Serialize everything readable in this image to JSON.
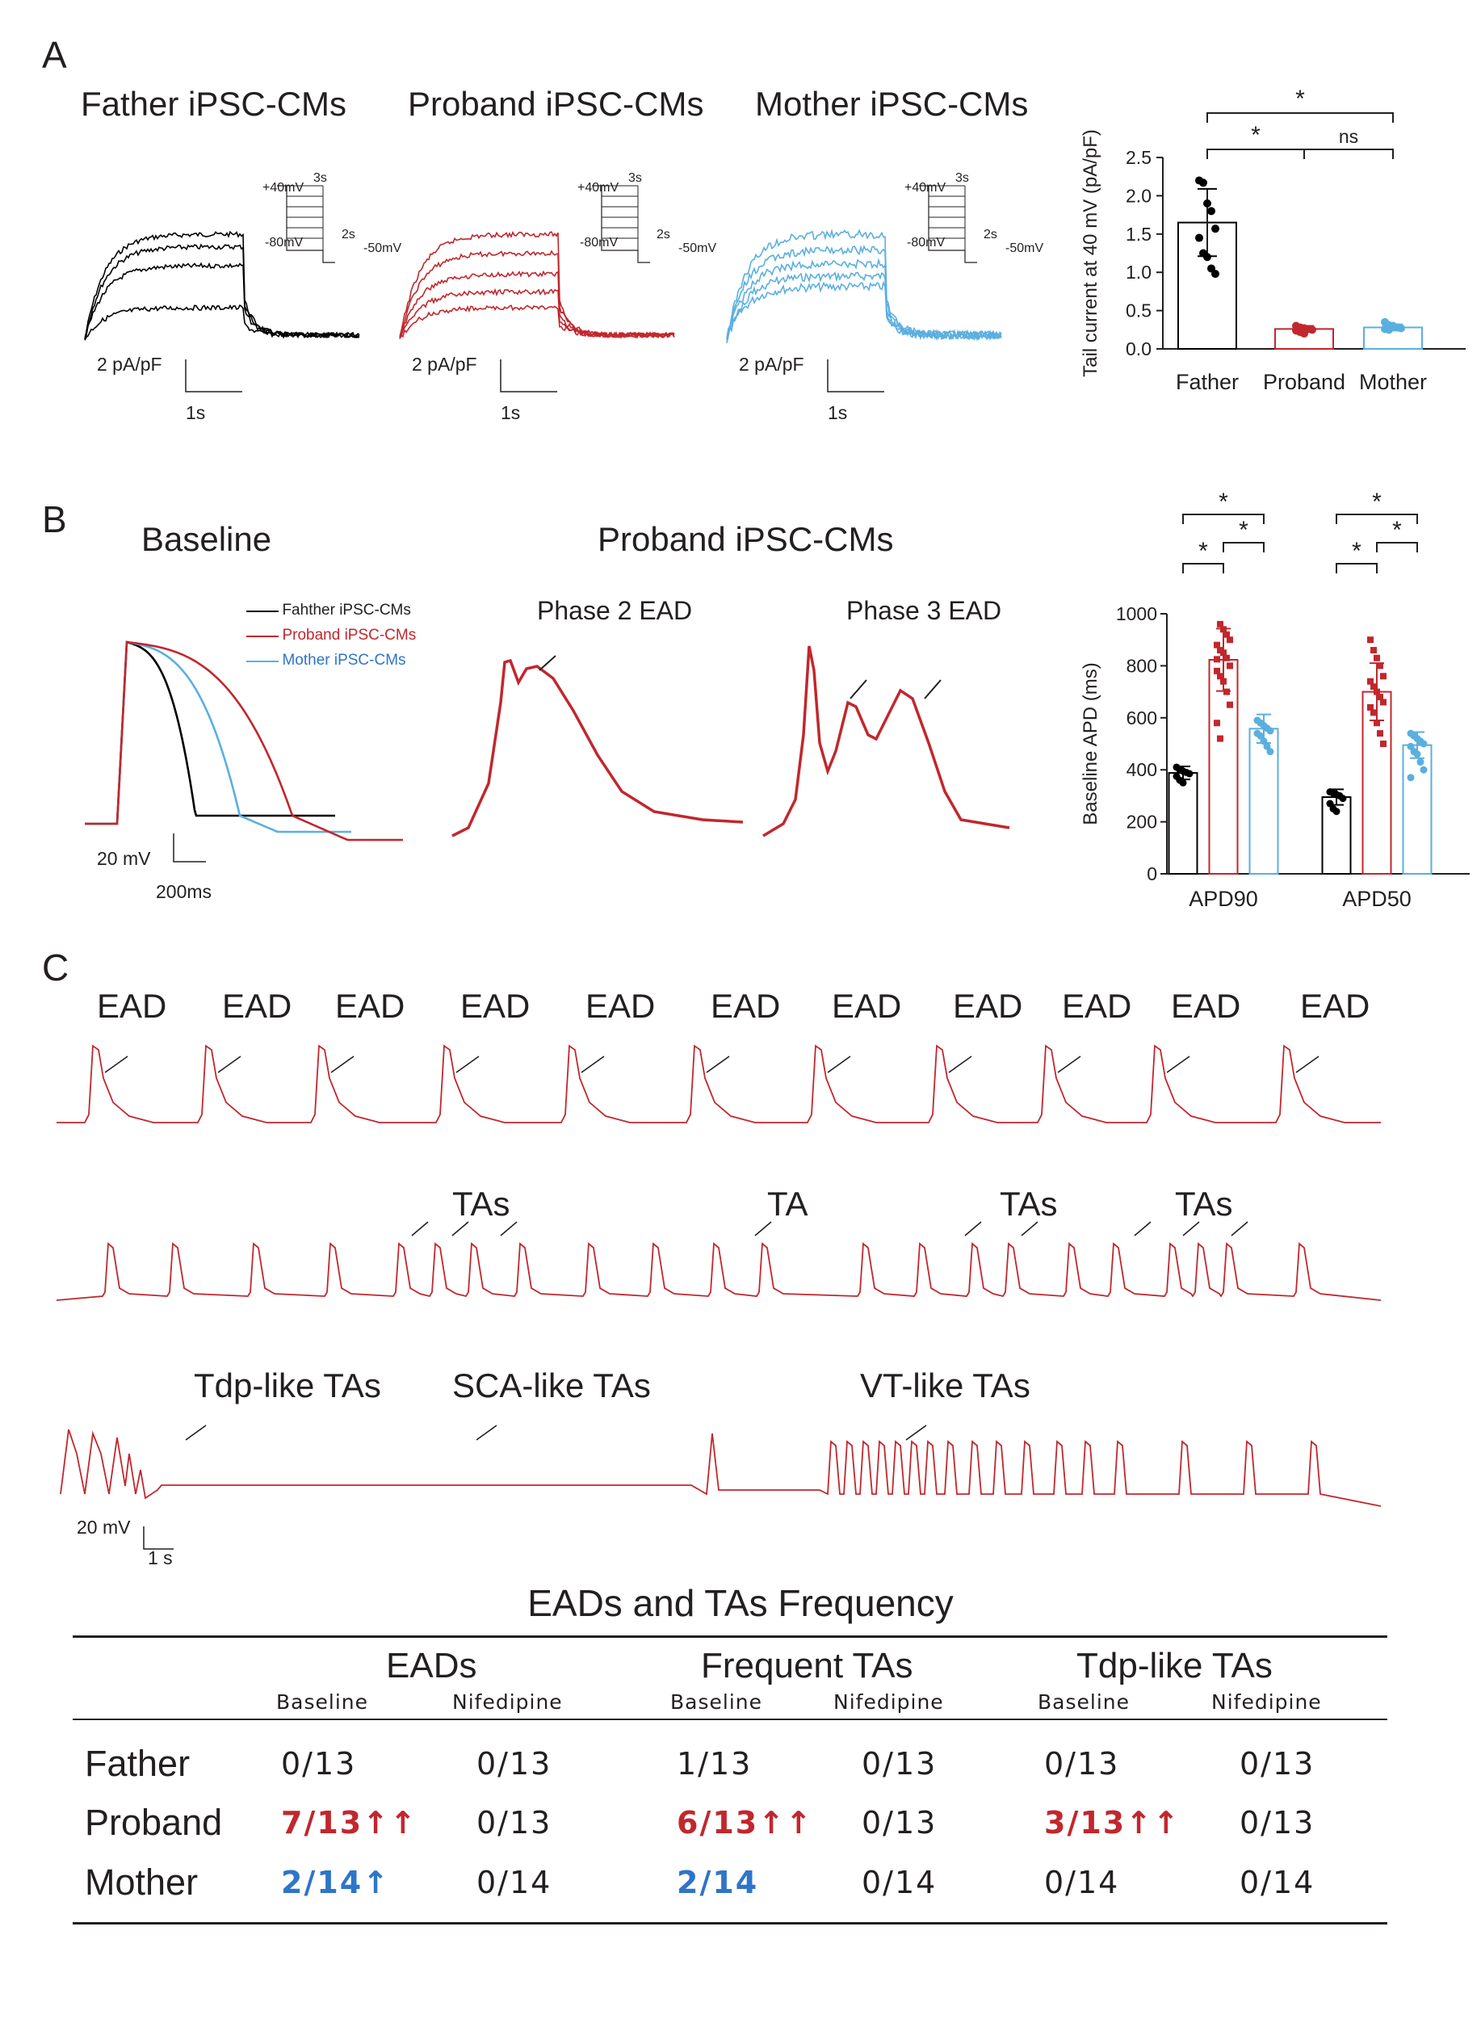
{
  "panel_labels": [
    "A",
    "B",
    "C"
  ],
  "panelA": {
    "trace_titles": [
      "Father iPSC-CMs",
      "Proband iPSC-CMs",
      "Mother iPSC-CMs"
    ],
    "protocol": {
      "top": "+40mV",
      "bottom": "-80mV",
      "tail": "-50mV",
      "t1": "3s",
      "t2": "2s"
    },
    "scale": {
      "y": "2 pA/pF",
      "x": "1s"
    }
  },
  "panelB": {
    "title_left": "Baseline",
    "title_mid": "Proband iPSC-CMs",
    "sub_phase2": "Phase 2 EAD",
    "sub_phase3": "Phase 3 EAD",
    "legend": [
      "Fahther iPSC-CMs",
      "Proband iPSC-CMs",
      "Mother iPSC-CMs"
    ],
    "scale": {
      "y": "20 mV",
      "x": "200ms"
    }
  },
  "panelC": {
    "row1_labels": [
      "EAD",
      "EAD",
      "EAD",
      "EAD",
      "EAD",
      "EAD",
      "EAD",
      "EAD",
      "EAD",
      "EAD",
      "EAD"
    ],
    "row2_labels": [
      "TAs",
      "TA",
      "TAs",
      "TAs"
    ],
    "row3_labels": [
      "Tdp-like TAs",
      "SCA-like TAs",
      "VT-like TAs"
    ],
    "scale": {
      "y": "20 mV",
      "x": "1 s"
    }
  },
  "colors": {
    "father": "#000000",
    "proband": "#c1272d",
    "mother": "#5aafe0",
    "highlight_blue": "#2e75c9"
  },
  "chart_data": [
    {
      "type": "bar",
      "ylabel": "Tail current at 40 mV (pA/pF)",
      "categories": [
        "Father",
        "Proband",
        "Mother"
      ],
      "values": [
        1.65,
        0.26,
        0.28
      ],
      "errors": [
        0.44,
        0.04,
        0.04
      ],
      "points": [
        [
          2.2,
          2.17,
          1.9,
          1.8,
          1.57,
          1.45,
          1.25,
          1.2,
          1.05,
          0.98
        ],
        [
          0.3,
          0.28,
          0.27,
          0.26,
          0.25,
          0.24,
          0.22,
          0.2
        ],
        [
          0.35,
          0.31,
          0.3,
          0.28,
          0.27,
          0.26,
          0.25
        ]
      ],
      "ylim": [
        0,
        2.5
      ],
      "yticks": [
        "0.0",
        "0.5",
        "1.0",
        "1.5",
        "2.0",
        "2.5"
      ],
      "significance": [
        {
          "pair": [
            "Father",
            "Mother"
          ],
          "label": "*"
        },
        {
          "pair": [
            "Father",
            "Proband"
          ],
          "label": "*"
        },
        {
          "pair": [
            "Proband",
            "Mother"
          ],
          "label": "ns"
        }
      ]
    },
    {
      "type": "bar",
      "ylabel": "Baseline APD  (ms)",
      "categories": [
        "APD90",
        "APD50"
      ],
      "series": [
        {
          "name": "Father",
          "values": [
            388,
            295
          ],
          "errors": [
            25,
            30
          ]
        },
        {
          "name": "Proband",
          "values": [
            823,
            700
          ],
          "errors": [
            120,
            110
          ]
        },
        {
          "name": "Mother",
          "values": [
            558,
            495
          ],
          "errors": [
            55,
            50
          ]
        }
      ],
      "points": [
        [
          [
            410,
            400,
            395,
            390,
            385,
            375,
            360,
            350
          ],
          [
            825,
            960,
            940,
            920,
            900,
            880,
            860,
            850,
            830,
            800,
            780,
            760,
            740,
            700,
            650,
            580,
            520
          ],
          [
            590,
            580,
            570,
            560,
            550,
            540,
            530,
            510,
            490,
            470
          ]
        ],
        [
          [
            315,
            310,
            305,
            300,
            290,
            270,
            250,
            240
          ],
          [
            900,
            860,
            830,
            800,
            760,
            740,
            720,
            700,
            680,
            660,
            640,
            620,
            580,
            540,
            500
          ],
          [
            540,
            530,
            520,
            510,
            500,
            490,
            470,
            460,
            430,
            400,
            370
          ]
        ]
      ],
      "ylim": [
        0,
        1000
      ],
      "yticks": [
        "0",
        "200",
        "400",
        "600",
        "800",
        "1000"
      ],
      "significance": [
        "*",
        "*",
        "*",
        "*",
        "*",
        "*"
      ]
    },
    {
      "type": "table",
      "title": "EADs and TAs Frequency",
      "groups": [
        "EADs",
        "Frequent TAs",
        "Tdp-like TAs"
      ],
      "subheaders": [
        "Baseline",
        "Nifedipine",
        "Baseline",
        "Nifedipine",
        "Baseline",
        "Nifedipine"
      ],
      "rows": [
        {
          "label": "Father",
          "cells": [
            "0/13",
            "0/13",
            "1/13",
            "0/13",
            "0/13",
            "0/13"
          ]
        },
        {
          "label": "Proband",
          "cells": [
            "7/13↑↑",
            "0/13",
            "6/13↑↑",
            "0/13",
            "3/13↑↑",
            "0/13"
          ]
        },
        {
          "label": "Mother",
          "cells": [
            "2/14↑",
            "0/14",
            "2/14",
            "0/14",
            "0/14",
            "0/14"
          ]
        }
      ]
    }
  ]
}
